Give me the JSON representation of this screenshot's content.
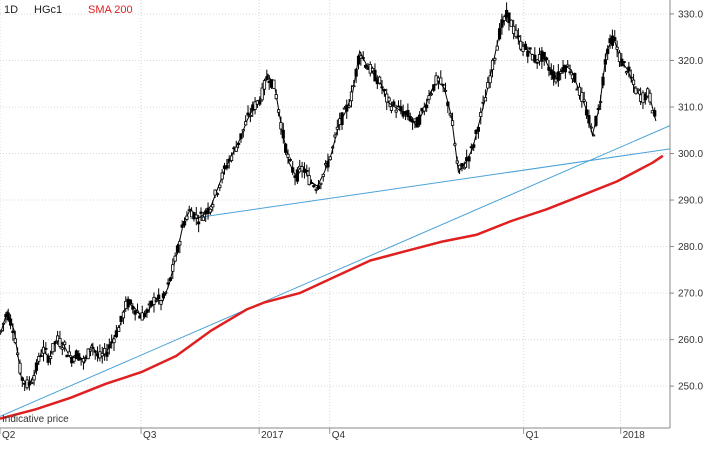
{
  "header": {
    "timeframe": "1D",
    "symbol": "HGc1",
    "indicator": "SMA 200",
    "indicator_color": "#e02020"
  },
  "note": "Indicative price",
  "chart_data": {
    "type": "line",
    "title": "",
    "xlabel": "",
    "ylabel": "",
    "ylim": [
      241,
      333
    ],
    "y_ticks": [
      250,
      260,
      270,
      280,
      290,
      300,
      310,
      320,
      330
    ],
    "x_tick_labels": [
      {
        "label": "Q2",
        "day": 0
      },
      {
        "label": "Q3",
        "day": 80
      },
      {
        "label": "2017",
        "day": 147
      },
      {
        "label": "Q4",
        "day": 187
      },
      {
        "label": "Q1",
        "day": 297
      },
      {
        "label": "2018",
        "day": 352
      }
    ],
    "series": [
      {
        "name": "HGc1",
        "style": "candlestick",
        "color": "#000000",
        "points": [
          [
            0,
            261
          ],
          [
            4,
            266
          ],
          [
            8,
            262
          ],
          [
            12,
            252
          ],
          [
            16,
            250
          ],
          [
            20,
            253
          ],
          [
            24,
            258
          ],
          [
            28,
            256
          ],
          [
            32,
            260
          ],
          [
            36,
            259
          ],
          [
            40,
            256
          ],
          [
            44,
            257
          ],
          [
            48,
            255
          ],
          [
            52,
            259
          ],
          [
            56,
            256
          ],
          [
            60,
            257
          ],
          [
            64,
            260
          ],
          [
            68,
            263
          ],
          [
            72,
            268
          ],
          [
            76,
            267
          ],
          [
            80,
            265
          ],
          [
            84,
            266
          ],
          [
            88,
            269
          ],
          [
            92,
            268
          ],
          [
            96,
            272
          ],
          [
            100,
            278
          ],
          [
            104,
            285
          ],
          [
            108,
            288
          ],
          [
            112,
            286
          ],
          [
            116,
            287
          ],
          [
            120,
            289
          ],
          [
            124,
            293
          ],
          [
            128,
            297
          ],
          [
            132,
            300
          ],
          [
            136,
            303
          ],
          [
            140,
            307
          ],
          [
            144,
            310
          ],
          [
            148,
            312
          ],
          [
            152,
            317
          ],
          [
            156,
            314
          ],
          [
            160,
            305
          ],
          [
            164,
            298
          ],
          [
            168,
            295
          ],
          [
            172,
            297
          ],
          [
            176,
            294
          ],
          [
            180,
            293
          ],
          [
            184,
            296
          ],
          [
            188,
            300
          ],
          [
            192,
            306
          ],
          [
            196,
            309
          ],
          [
            200,
            313
          ],
          [
            204,
            322
          ],
          [
            208,
            319
          ],
          [
            212,
            317
          ],
          [
            216,
            315
          ],
          [
            220,
            311
          ],
          [
            224,
            310
          ],
          [
            228,
            309
          ],
          [
            232,
            308
          ],
          [
            236,
            306
          ],
          [
            240,
            309
          ],
          [
            244,
            313
          ],
          [
            248,
            316
          ],
          [
            252,
            314
          ],
          [
            256,
            308
          ],
          [
            260,
            296
          ],
          [
            264,
            298
          ],
          [
            268,
            301
          ],
          [
            272,
            307
          ],
          [
            276,
            313
          ],
          [
            280,
            320
          ],
          [
            284,
            327
          ],
          [
            288,
            330
          ],
          [
            292,
            326
          ],
          [
            296,
            323
          ],
          [
            300,
            322
          ],
          [
            304,
            320
          ],
          [
            308,
            321
          ],
          [
            312,
            318
          ],
          [
            316,
            316
          ],
          [
            320,
            319
          ],
          [
            324,
            318
          ],
          [
            328,
            314
          ],
          [
            332,
            310
          ],
          [
            336,
            304
          ],
          [
            340,
            310
          ],
          [
            344,
            322
          ],
          [
            348,
            325
          ],
          [
            352,
            320
          ],
          [
            356,
            318
          ],
          [
            360,
            314
          ],
          [
            364,
            312
          ],
          [
            368,
            313
          ],
          [
            372,
            307
          ]
        ]
      },
      {
        "name": "SMA 200",
        "style": "line",
        "color": "#e02020",
        "points": [
          [
            0,
            243
          ],
          [
            20,
            245
          ],
          [
            40,
            247.5
          ],
          [
            60,
            250.5
          ],
          [
            80,
            253
          ],
          [
            100,
            256.5
          ],
          [
            120,
            262
          ],
          [
            140,
            266.5
          ],
          [
            150,
            268
          ],
          [
            170,
            270
          ],
          [
            190,
            273.5
          ],
          [
            210,
            277
          ],
          [
            230,
            279
          ],
          [
            250,
            281
          ],
          [
            270,
            282.5
          ],
          [
            290,
            285.5
          ],
          [
            310,
            288
          ],
          [
            330,
            291
          ],
          [
            350,
            294
          ],
          [
            370,
            298
          ],
          [
            376,
            299.5
          ]
        ]
      },
      {
        "name": "",
        "style": "trendline",
        "color": "#4aa3d8",
        "points": [
          [
            0,
            243.5
          ],
          [
            380,
            306
          ]
        ]
      },
      {
        "name": "",
        "style": "trendline",
        "color": "#4aa3d8",
        "points": [
          [
            108,
            286
          ],
          [
            380,
            301
          ]
        ]
      }
    ],
    "grid": true,
    "legend": "top-left"
  }
}
